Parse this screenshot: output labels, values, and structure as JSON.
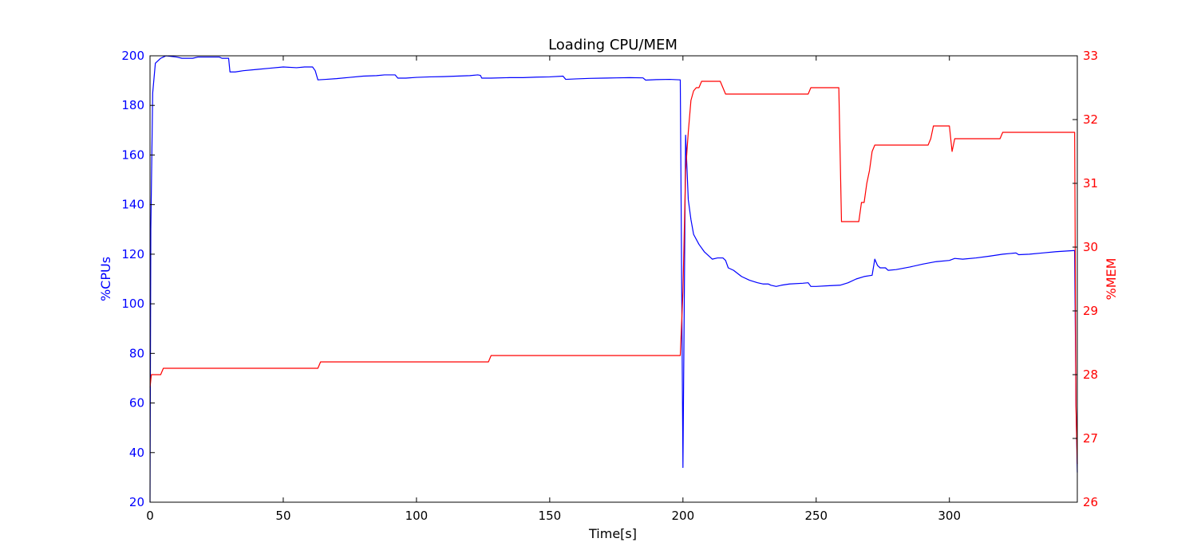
{
  "chart_data": {
    "type": "line",
    "title": "Loading CPU/MEM",
    "xlabel": "Time[s]",
    "y_left_label": "%CPUs",
    "y_right_label": "%MEM",
    "xlim": [
      0,
      348
    ],
    "y_left_lim": [
      20,
      200
    ],
    "y_right_lim": [
      26,
      33
    ],
    "x_ticks": [
      0,
      50,
      100,
      150,
      200,
      250,
      300
    ],
    "y_left_ticks": [
      20,
      40,
      60,
      80,
      100,
      120,
      140,
      160,
      180,
      200
    ],
    "y_right_ticks": [
      26,
      27,
      28,
      29,
      30,
      31,
      32,
      33
    ],
    "colors": {
      "cpu": "#0000ff",
      "mem": "#ff0000",
      "axis": "#000000"
    },
    "grid": false,
    "series": [
      {
        "axis": "left",
        "color": "#0000ff",
        "points": [
          [
            0,
            20
          ],
          [
            0.3,
            130
          ],
          [
            1,
            185
          ],
          [
            2,
            197
          ],
          [
            3,
            198
          ],
          [
            4,
            199
          ],
          [
            5,
            199.5
          ],
          [
            6,
            200
          ],
          [
            10,
            199.5
          ],
          [
            12,
            199
          ],
          [
            16,
            199
          ],
          [
            18,
            199.5
          ],
          [
            22,
            199.5
          ],
          [
            26,
            199.5
          ],
          [
            27,
            199
          ],
          [
            29.5,
            199
          ],
          [
            30,
            193.5
          ],
          [
            32,
            193.5
          ],
          [
            35,
            194
          ],
          [
            40,
            194.5
          ],
          [
            45,
            195
          ],
          [
            50,
            195.5
          ],
          [
            55,
            195.2
          ],
          [
            58,
            195.5
          ],
          [
            61,
            195.5
          ],
          [
            62,
            194
          ],
          [
            63,
            190.3
          ],
          [
            66,
            190.5
          ],
          [
            70,
            190.8
          ],
          [
            75,
            191.3
          ],
          [
            80,
            191.8
          ],
          [
            85,
            192
          ],
          [
            88,
            192.3
          ],
          [
            92,
            192.3
          ],
          [
            93,
            191
          ],
          [
            96,
            191
          ],
          [
            100,
            191.3
          ],
          [
            105,
            191.5
          ],
          [
            110,
            191.6
          ],
          [
            115,
            191.8
          ],
          [
            120,
            192
          ],
          [
            123,
            192.3
          ],
          [
            124,
            192.1
          ],
          [
            124.5,
            191
          ],
          [
            128,
            191
          ],
          [
            135,
            191.2
          ],
          [
            140,
            191.2
          ],
          [
            145,
            191.4
          ],
          [
            150,
            191.5
          ],
          [
            155,
            191.8
          ],
          [
            156,
            190.5
          ],
          [
            160,
            190.7
          ],
          [
            165,
            190.9
          ],
          [
            170,
            191
          ],
          [
            175,
            191.1
          ],
          [
            180,
            191.2
          ],
          [
            185,
            191.1
          ],
          [
            186,
            190.2
          ],
          [
            190,
            190.4
          ],
          [
            195,
            190.5
          ],
          [
            199,
            190.3
          ],
          [
            200,
            34
          ],
          [
            201,
            168
          ],
          [
            202,
            142
          ],
          [
            203,
            134
          ],
          [
            204,
            128
          ],
          [
            206,
            124
          ],
          [
            208,
            121
          ],
          [
            211,
            118
          ],
          [
            213,
            118.5
          ],
          [
            215,
            118.5
          ],
          [
            216,
            117.5
          ],
          [
            217,
            114.5
          ],
          [
            219,
            113.5
          ],
          [
            222,
            111
          ],
          [
            225,
            109.5
          ],
          [
            228,
            108.5
          ],
          [
            230,
            108
          ],
          [
            232,
            108
          ],
          [
            233,
            107.5
          ],
          [
            235,
            107
          ],
          [
            237,
            107.5
          ],
          [
            240,
            108
          ],
          [
            245,
            108.3
          ],
          [
            247,
            108.5
          ],
          [
            248,
            107
          ],
          [
            250,
            107
          ],
          [
            255,
            107.3
          ],
          [
            259,
            107.5
          ],
          [
            262,
            108.5
          ],
          [
            265,
            110
          ],
          [
            268,
            111
          ],
          [
            271,
            111.5
          ],
          [
            272,
            118
          ],
          [
            273,
            115.5
          ],
          [
            274,
            114.5
          ],
          [
            276,
            114.5
          ],
          [
            277,
            113.5
          ],
          [
            280,
            113.8
          ],
          [
            285,
            114.8
          ],
          [
            290,
            116
          ],
          [
            295,
            117
          ],
          [
            300,
            117.5
          ],
          [
            302,
            118.3
          ],
          [
            305,
            118
          ],
          [
            310,
            118.5
          ],
          [
            315,
            119.2
          ],
          [
            320,
            120
          ],
          [
            323,
            120.3
          ],
          [
            325,
            120.5
          ],
          [
            326,
            119.8
          ],
          [
            330,
            120
          ],
          [
            335,
            120.5
          ],
          [
            340,
            121
          ],
          [
            347,
            121.5
          ],
          [
            347.5,
            60
          ],
          [
            348,
            32
          ]
        ]
      },
      {
        "axis": "right",
        "color": "#ff0000",
        "points": [
          [
            0,
            27.8
          ],
          [
            0.5,
            28
          ],
          [
            4,
            28
          ],
          [
            5,
            28.1
          ],
          [
            63,
            28.1
          ],
          [
            64,
            28.2
          ],
          [
            127,
            28.2
          ],
          [
            128,
            28.3
          ],
          [
            199,
            28.3
          ],
          [
            200,
            29.3
          ],
          [
            201,
            31.2
          ],
          [
            202,
            31.8
          ],
          [
            203,
            32.3
          ],
          [
            204,
            32.45
          ],
          [
            205,
            32.5
          ],
          [
            206,
            32.5
          ],
          [
            207,
            32.6
          ],
          [
            214,
            32.6
          ],
          [
            216,
            32.4
          ],
          [
            247,
            32.4
          ],
          [
            248,
            32.5
          ],
          [
            258.5,
            32.5
          ],
          [
            259.5,
            30.4
          ],
          [
            266,
            30.4
          ],
          [
            267,
            30.7
          ],
          [
            268,
            30.7
          ],
          [
            269,
            31
          ],
          [
            270,
            31.2
          ],
          [
            271,
            31.5
          ],
          [
            272,
            31.6
          ],
          [
            292,
            31.6
          ],
          [
            293,
            31.7
          ],
          [
            294,
            31.9
          ],
          [
            300,
            31.9
          ],
          [
            301,
            31.5
          ],
          [
            302,
            31.7
          ],
          [
            319,
            31.7
          ],
          [
            320,
            31.8
          ],
          [
            347,
            31.8
          ],
          [
            347.5,
            27.5
          ],
          [
            348,
            26.6
          ]
        ]
      }
    ]
  }
}
